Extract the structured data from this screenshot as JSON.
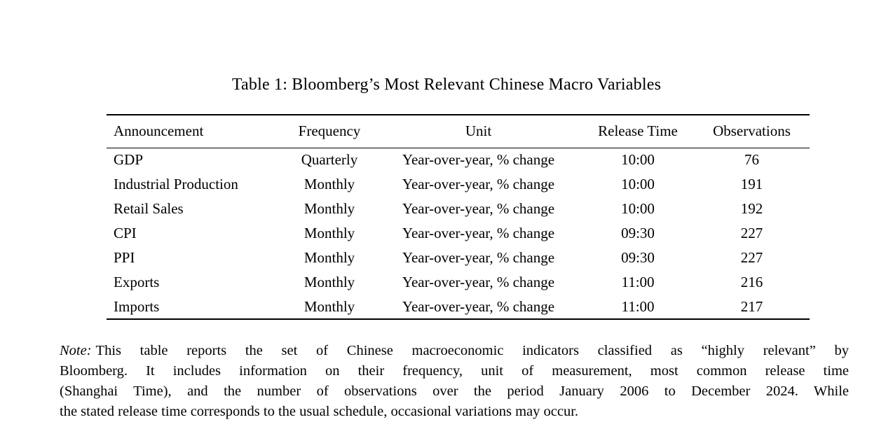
{
  "page": {
    "background": "#ffffff",
    "text_color": "#000000",
    "rule_color": "#000000"
  },
  "table": {
    "title": "Table 1: Bloomberg’s Most Relevant Chinese Macro Variables",
    "columns": [
      "Announcement",
      "Frequency",
      "Unit",
      "Release Time",
      "Observations"
    ],
    "rows": [
      [
        "GDP",
        "Quarterly",
        "Year-over-year, % change",
        "10:00",
        "76"
      ],
      [
        "Industrial Production",
        "Monthly",
        "Year-over-year, % change",
        "10:00",
        "191"
      ],
      [
        "Retail Sales",
        "Monthly",
        "Year-over-year, % change",
        "10:00",
        "192"
      ],
      [
        "CPI",
        "Monthly",
        "Year-over-year, % change",
        "09:30",
        "227"
      ],
      [
        "PPI",
        "Monthly",
        "Year-over-year, % change",
        "09:30",
        "227"
      ],
      [
        "Exports",
        "Monthly",
        "Year-over-year, % change",
        "11:00",
        "216"
      ],
      [
        "Imports",
        "Monthly",
        "Year-over-year, % change",
        "11:00",
        "217"
      ]
    ]
  },
  "note": {
    "label": "Note:",
    "lines": [
      "This table reports the set of Chinese macroeconomic indicators classified as “highly relevant” by",
      "Bloomberg.  It includes information on their frequency, unit of measurement, most common release time",
      "(Shanghai Time), and the number of observations over the period January 2006 to December 2024.  While",
      "the stated release time corresponds to the usual schedule, occasional variations may occur."
    ]
  }
}
